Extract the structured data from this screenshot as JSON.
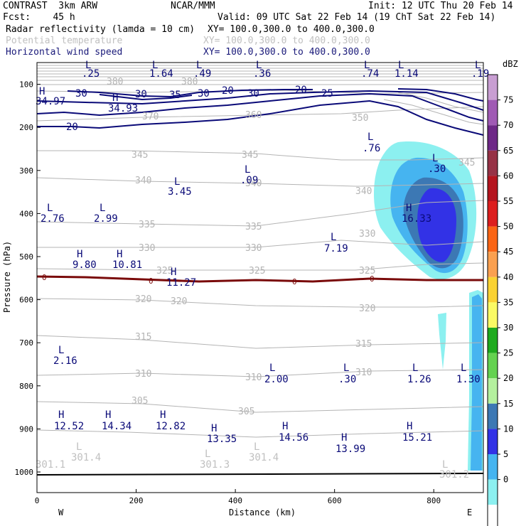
{
  "header": {
    "line1_left": "CONTRAST  3km ARW",
    "line1_center": "NCAR/MMM",
    "line1_right": "Init: 12 UTC Thu 20 Feb 14",
    "line2_left": "Fcst:    45 h",
    "line2_right": "Valid: 09 UTC Sat 22 Feb 14 (19 ChT Sat 22 Feb 14)",
    "field1_name": "Radar reflectivity (lamda = 10 cm)",
    "field1_xy": "XY= 100.0,300.0 to 400.0,300.0",
    "field2_name": "Potential temperature",
    "field2_xy": "XY= 100.0,300.0 to 400.0,300.0",
    "field3_name": "Horizontal wind speed",
    "field3_xy": "XY= 100.0,300.0 to 400.0,300.0"
  },
  "colors": {
    "theta": "#b4b4b4",
    "wind": "#0a0a78",
    "zero_line": "#7a0a0a",
    "frame": "#000000"
  },
  "chart_data": {
    "type": "contour_cross_section",
    "xlabel": "Distance (km)",
    "ylabel": "Pressure (hPa)",
    "xlim": [
      0,
      900
    ],
    "ylim_hpa": [
      1050,
      50
    ],
    "xticks": [
      0,
      200,
      400,
      600,
      800
    ],
    "yticks": [
      100,
      200,
      300,
      400,
      500,
      600,
      700,
      800,
      900,
      1000
    ],
    "west_label": "W",
    "east_label": "E",
    "colorbar": {
      "unit": "dBZ",
      "levels": [
        "75",
        "70",
        "65",
        "60",
        "55",
        "50",
        "45",
        "40",
        "35",
        "30",
        "25",
        "20",
        "15",
        "10",
        "5",
        "0"
      ],
      "colors": [
        "#c89ed2",
        "#a05ab4",
        "#6e2887",
        "#963246",
        "#b4141e",
        "#dc1e1e",
        "#fa6414",
        "#faa050",
        "#fad232",
        "#fafa64",
        "#1eaa1e",
        "#64d250",
        "#b4f09e",
        "#3c78b4",
        "#3232e6",
        "#46b4f0",
        "#8cf0f0",
        "#ffffff"
      ]
    },
    "theta_contours": [
      "380",
      "375",
      "370",
      "360",
      "350",
      "345",
      "340",
      "335",
      "330",
      "325",
      "320",
      "315",
      "310",
      "305"
    ],
    "theta_label_values": [
      "380",
      "380",
      "370",
      "360",
      "350",
      "345",
      "345",
      "345",
      "340",
      "340",
      "340",
      "335",
      "335",
      "330",
      "330",
      "330",
      "325",
      "325",
      "325",
      "320",
      "320",
      "320",
      "315",
      "315",
      "310",
      "310",
      "310",
      "305",
      "305"
    ],
    "wind_labels": [
      "30",
      "30",
      "35",
      "30",
      "20",
      "30",
      "20",
      "25",
      "20"
    ],
    "zero_labels": [
      "0",
      "0",
      "0",
      "0"
    ],
    "extrema": [
      {
        "type": "L",
        "value": ".25"
      },
      {
        "type": "L",
        "value": "1.64"
      },
      {
        "type": "L",
        "value": ".49"
      },
      {
        "type": "L",
        "value": ".36"
      },
      {
        "type": "L",
        "value": ".74"
      },
      {
        "type": "L",
        "value": "1.14"
      },
      {
        "type": "L",
        "value": ".19"
      },
      {
        "type": "H",
        "value": "34.97"
      },
      {
        "type": "H",
        "value": "34.93"
      },
      {
        "type": "L",
        "value": ".76"
      },
      {
        "type": "L",
        "value": ".30"
      },
      {
        "type": "L",
        "value": "3.45"
      },
      {
        "type": "L",
        "value": ".09"
      },
      {
        "type": "L",
        "value": "2.76"
      },
      {
        "type": "L",
        "value": "2.99"
      },
      {
        "type": "H",
        "value": "16.33"
      },
      {
        "type": "L",
        "value": "7.19"
      },
      {
        "type": "H",
        "value": "9.80"
      },
      {
        "type": "H",
        "value": "10.81"
      },
      {
        "type": "H",
        "value": "11.27"
      },
      {
        "type": "L",
        "value": "2.16"
      },
      {
        "type": "L",
        "value": "2.00"
      },
      {
        "type": "L",
        "value": ".30"
      },
      {
        "type": "L",
        "value": "1.26"
      },
      {
        "type": "L",
        "value": "1.30"
      },
      {
        "type": "H",
        "value": "12.52"
      },
      {
        "type": "H",
        "value": "14.34"
      },
      {
        "type": "H",
        "value": "12.82"
      },
      {
        "type": "H",
        "value": "13.35"
      },
      {
        "type": "H",
        "value": "14.56"
      },
      {
        "type": "H",
        "value": "13.99"
      },
      {
        "type": "H",
        "value": "15.21"
      },
      {
        "type": "L",
        "value": "301.4"
      },
      {
        "type": "L",
        "value": "301.3"
      },
      {
        "type": "L",
        "value": "301.4"
      },
      {
        "type": "L",
        "value": "301.2"
      },
      {
        "type": "L",
        "value": "301.1"
      }
    ]
  }
}
